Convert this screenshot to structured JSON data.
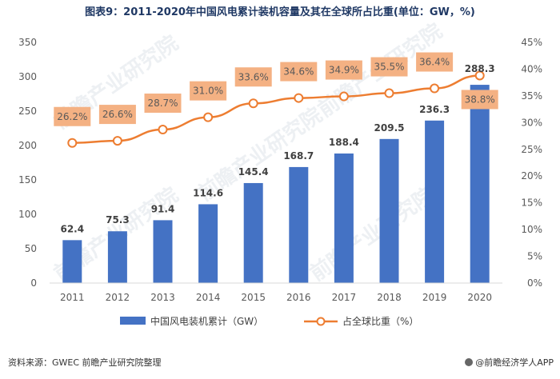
{
  "title": "图表9：2011-2020年中国风电累计装机容量及其在全球所占比重(单位：GW，%)",
  "source": "资料来源：GWEC 前瞻产业研究院整理",
  "brand": "@前瞻经济学人APP",
  "watermark": "前瞻产业研究院",
  "colors": {
    "bar": "#4472c4",
    "line": "#ed7d31",
    "label_bg": "#f4b183"
  },
  "chart_data": {
    "type": "bar",
    "categories": [
      "2011",
      "2012",
      "2013",
      "2014",
      "2015",
      "2016",
      "2017",
      "2018",
      "2019",
      "2020"
    ],
    "series": [
      {
        "name": "中国风电装机累计（GW）",
        "type": "bar",
        "axis": "left",
        "values": [
          62.4,
          75.3,
          91.4,
          114.6,
          145.4,
          168.7,
          188.4,
          209.5,
          236.3,
          288.3
        ],
        "labels": [
          "62.4",
          "75.3",
          "91.4",
          "114.6",
          "145.4",
          "168.7",
          "188.4",
          "209.5",
          "236.3",
          "288.3"
        ]
      },
      {
        "name": "占全球比重（%）",
        "type": "line",
        "axis": "right",
        "values": [
          26.2,
          26.6,
          28.7,
          31.0,
          33.6,
          34.6,
          34.9,
          35.5,
          36.4,
          38.8
        ],
        "labels": [
          "26.2%",
          "26.6%",
          "28.7%",
          "31.0%",
          "33.6%",
          "34.6%",
          "34.9%",
          "35.5%",
          "36.4%",
          "38.8%"
        ]
      }
    ],
    "yleft": {
      "lim": [
        0,
        350
      ],
      "ticks": [
        "0",
        "50",
        "100",
        "150",
        "200",
        "250",
        "300",
        "350"
      ]
    },
    "yright": {
      "lim": [
        0,
        45
      ],
      "ticks": [
        "0%",
        "5%",
        "10%",
        "15%",
        "20%",
        "25%",
        "30%",
        "35%",
        "40%",
        "45%"
      ]
    },
    "legend_position": "bottom"
  }
}
